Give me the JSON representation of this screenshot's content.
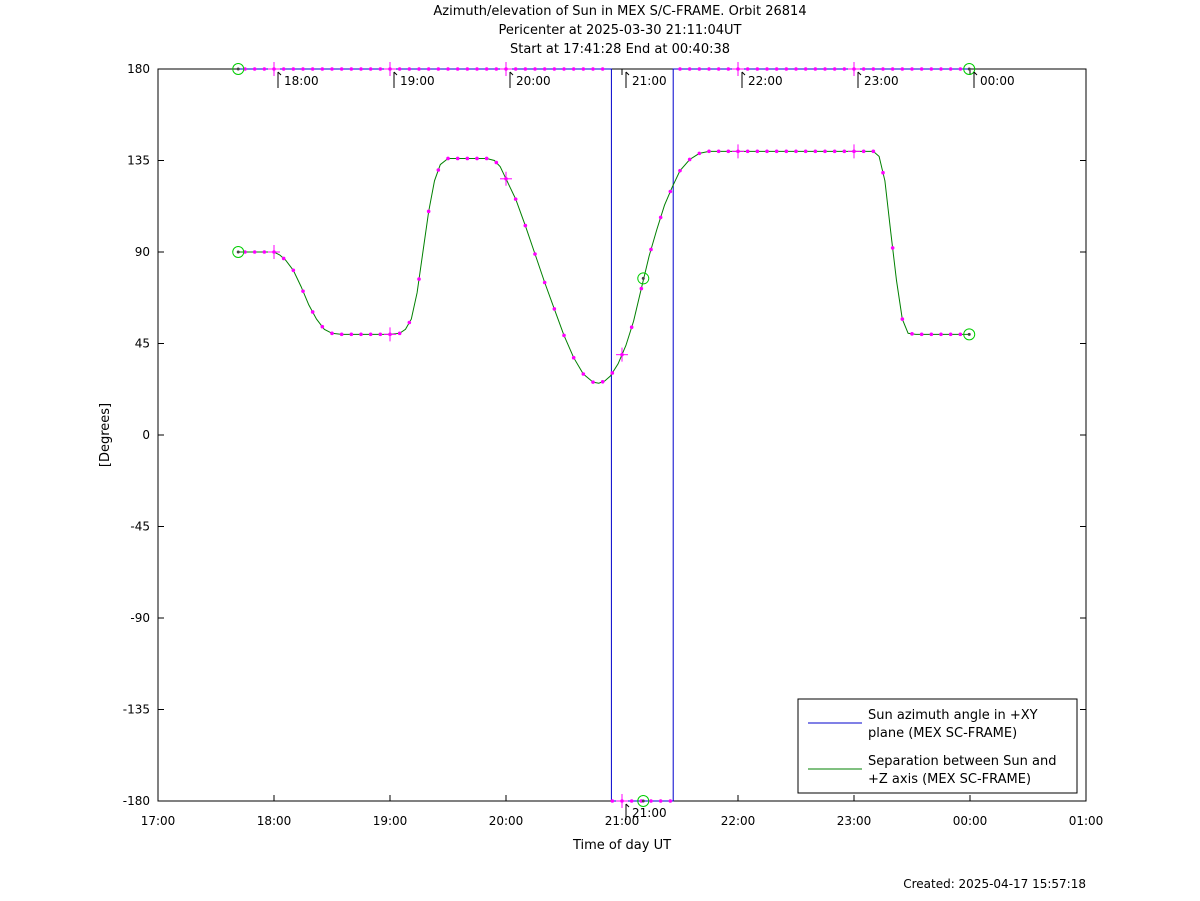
{
  "title": {
    "line1": "Azimuth/elevation of Sun in MEX S/C-FRAME.  Orbit 26814",
    "line2": "Pericenter at 2025-03-30 21:11:04UT",
    "line3": "Start at 17:41:28 End at 00:40:38"
  },
  "footer": "Created: 2025-04-17 15:57:18",
  "chart_data": {
    "type": "line",
    "xlabel": "Time of day UT",
    "ylabel": "[Degrees]",
    "xlim": [
      0,
      480
    ],
    "ylim": [
      -180,
      180
    ],
    "x_ticks": [
      {
        "v": 0,
        "label": "17:00"
      },
      {
        "v": 60,
        "label": "18:00"
      },
      {
        "v": 120,
        "label": "19:00"
      },
      {
        "v": 180,
        "label": "20:00"
      },
      {
        "v": 240,
        "label": "21:00"
      },
      {
        "v": 300,
        "label": "22:00"
      },
      {
        "v": 360,
        "label": "23:00"
      },
      {
        "v": 420,
        "label": "00:00"
      },
      {
        "v": 480,
        "label": "01:00"
      }
    ],
    "y_ticks": [
      180,
      135,
      90,
      45,
      0,
      -45,
      -90,
      -135,
      -180
    ],
    "hour_annotations": [
      {
        "v": 60,
        "label": "18:00"
      },
      {
        "v": 120,
        "label": "19:00"
      },
      {
        "v": 180,
        "label": "20:00"
      },
      {
        "v": 240,
        "label": "21:00"
      },
      {
        "v": 300,
        "label": "22:00"
      },
      {
        "v": 360,
        "label": "23:00"
      },
      {
        "v": 420,
        "label": "00:00"
      }
    ],
    "series": [
      {
        "name": "Sun azimuth angle in +XY plane (MEX SC-FRAME)",
        "color": "#0000cc",
        "points": [
          [
            41.5,
            180
          ],
          [
            234.5,
            180
          ],
          [
            234.5,
            -180
          ],
          [
            266.5,
            -180
          ],
          [
            266.5,
            180
          ],
          [
            419.6,
            180
          ]
        ]
      },
      {
        "name": "Separation between Sun and +Z axis (MEX SC-FRAME)",
        "color": "#008000",
        "points": [
          [
            41.5,
            90
          ],
          [
            45,
            90
          ],
          [
            50,
            90
          ],
          [
            55,
            90
          ],
          [
            60,
            90
          ],
          [
            63,
            88.5
          ],
          [
            66,
            86
          ],
          [
            70,
            81
          ],
          [
            74,
            73
          ],
          [
            78,
            64
          ],
          [
            82,
            57
          ],
          [
            86,
            52
          ],
          [
            90,
            50
          ],
          [
            95,
            49.5
          ],
          [
            110,
            49.5
          ],
          [
            120,
            49.5
          ],
          [
            125,
            50
          ],
          [
            128,
            52
          ],
          [
            131,
            57
          ],
          [
            134,
            70
          ],
          [
            137,
            90
          ],
          [
            140,
            110
          ],
          [
            143,
            125
          ],
          [
            146,
            133
          ],
          [
            150,
            136
          ],
          [
            160,
            136
          ],
          [
            170,
            136
          ],
          [
            174,
            135
          ],
          [
            177,
            132
          ],
          [
            180,
            126
          ],
          [
            185,
            116
          ],
          [
            190,
            103
          ],
          [
            195,
            89
          ],
          [
            200,
            75
          ],
          [
            205,
            62
          ],
          [
            210,
            49
          ],
          [
            215,
            38
          ],
          [
            220,
            30
          ],
          [
            225,
            26
          ],
          [
            228,
            25.5
          ],
          [
            231,
            26.5
          ],
          [
            234,
            29
          ],
          [
            238,
            35
          ],
          [
            242,
            44
          ],
          [
            246,
            56
          ],
          [
            250,
            72
          ],
          [
            254,
            88
          ],
          [
            258,
            101
          ],
          [
            262,
            113
          ],
          [
            266,
            122
          ],
          [
            270,
            130
          ],
          [
            275,
            135.5
          ],
          [
            280,
            138.5
          ],
          [
            285,
            139.5
          ],
          [
            300,
            139.5
          ],
          [
            330,
            139.5
          ],
          [
            360,
            139.5
          ],
          [
            370,
            139.5
          ],
          [
            373,
            137
          ],
          [
            376,
            125
          ],
          [
            379,
            100
          ],
          [
            382,
            76
          ],
          [
            385,
            57
          ],
          [
            388,
            50
          ],
          [
            392,
            49.5
          ],
          [
            405,
            49.5
          ],
          [
            419.6,
            49.5
          ]
        ]
      }
    ],
    "markers": {
      "color": "#ff00ff",
      "x": [
        45,
        50,
        55,
        60,
        65,
        70,
        75,
        80,
        85,
        90,
        95,
        100,
        105,
        110,
        115,
        120,
        125,
        130,
        135,
        140,
        145,
        150,
        155,
        160,
        165,
        170,
        175,
        180,
        185,
        190,
        195,
        200,
        205,
        210,
        215,
        220,
        225,
        230,
        235,
        240,
        245,
        250,
        255,
        260,
        265,
        270,
        275,
        280,
        285,
        290,
        295,
        300,
        305,
        310,
        315,
        320,
        325,
        330,
        335,
        340,
        345,
        350,
        355,
        360,
        365,
        370,
        375,
        380,
        385,
        390,
        395,
        400,
        405,
        410,
        415
      ],
      "hour_x": [
        60,
        120,
        180,
        240,
        300,
        360,
        420
      ]
    },
    "circle_markers": {
      "color": "#00cc00",
      "points": [
        [
          41.5,
          180
        ],
        [
          41.5,
          90
        ],
        [
          419.6,
          180
        ],
        [
          419.6,
          49.5
        ],
        [
          251,
          77
        ],
        [
          251,
          -180
        ]
      ]
    },
    "legend": {
      "position": "bottom-right",
      "entries": [
        {
          "lines": [
            "Sun azimuth angle in +XY",
            "plane (MEX SC-FRAME)"
          ],
          "color": "#0000cc"
        },
        {
          "lines": [
            "Separation between Sun and",
            "+Z axis (MEX SC-FRAME)"
          ],
          "color": "#008000"
        }
      ]
    }
  }
}
